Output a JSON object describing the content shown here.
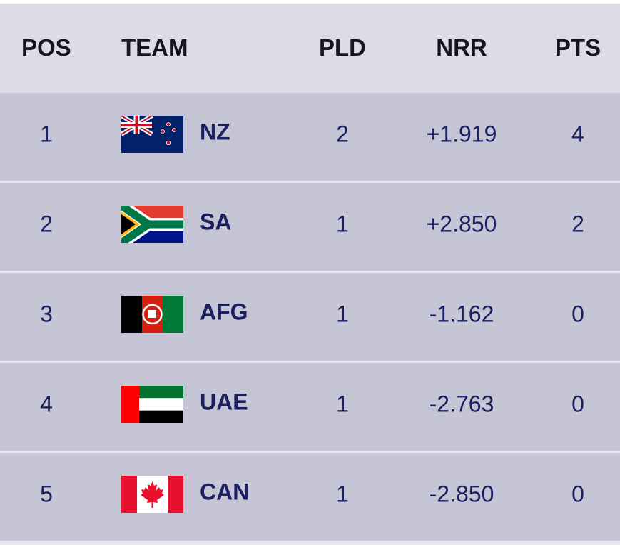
{
  "table": {
    "header": [
      "POS",
      "TEAM",
      "PLD",
      "NRR",
      "PTS"
    ],
    "rows": [
      [
        "1",
        "NZ",
        "2",
        "+1.919",
        "4"
      ],
      [
        "2",
        "SA",
        "1",
        "+2.850",
        "2"
      ],
      [
        "3",
        "AFG",
        "1",
        "-1.162",
        "0"
      ],
      [
        "4",
        "UAE",
        "1",
        "-2.763",
        "0"
      ],
      [
        "5",
        "CAN",
        "1",
        "-2.850",
        "0"
      ]
    ]
  }
}
